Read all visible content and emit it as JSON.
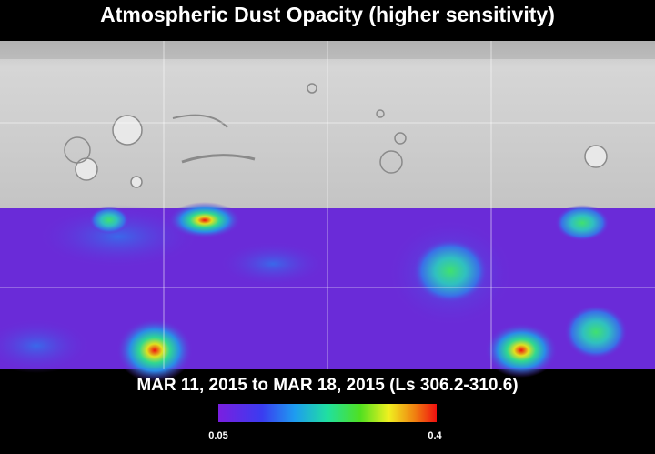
{
  "title": "Atmospheric Dust Opacity (higher sensitivity)",
  "subtitle": "MAR 11, 2015 to MAR 18, 2015 (Ls 306.2-310.6)",
  "colorbar": {
    "min": 0.05,
    "max": 0.4
  }
}
